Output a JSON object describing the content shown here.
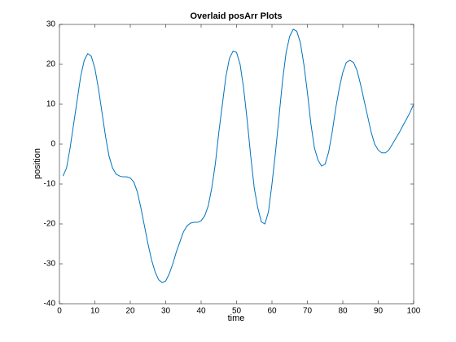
{
  "chart_data": {
    "type": "line",
    "title": "Overlaid posArr Plots",
    "x_label": "time",
    "y_label": "position",
    "x": [
      1,
      2,
      3,
      4,
      5,
      6,
      7,
      8,
      9,
      10,
      11,
      12,
      13,
      14,
      15,
      16,
      17,
      18,
      19,
      20,
      21,
      22,
      23,
      24,
      25,
      26,
      27,
      28,
      29,
      30,
      31,
      32,
      33,
      34,
      35,
      36,
      37,
      38,
      39,
      40,
      41,
      42,
      43,
      44,
      45,
      46,
      47,
      48,
      49,
      50,
      51,
      52,
      53,
      54,
      55,
      56,
      57,
      58,
      59,
      60,
      61,
      62,
      63,
      64,
      65,
      66,
      67,
      68,
      69,
      70,
      71,
      72,
      73,
      74,
      75,
      76,
      77,
      78,
      79,
      80,
      81,
      82,
      83,
      84,
      85,
      86,
      87,
      88,
      89,
      90,
      91,
      92,
      93,
      94,
      95,
      96,
      97,
      98,
      99,
      100
    ],
    "series": [
      {
        "color": "#0072bd",
        "values": [
          -8,
          -6,
          -1,
          5,
          11,
          17,
          21,
          22.7,
          22,
          19,
          14,
          8,
          2,
          -3,
          -6,
          -7.5,
          -8,
          -8.2,
          -8.2,
          -8.5,
          -9.5,
          -12,
          -16,
          -20.5,
          -25,
          -29,
          -32,
          -34,
          -34.7,
          -34.3,
          -32.5,
          -30,
          -27,
          -24.5,
          -22,
          -20.5,
          -19.8,
          -19.6,
          -19.6,
          -19.2,
          -18,
          -15.5,
          -11,
          -5,
          3,
          10,
          17,
          21.5,
          23.3,
          23,
          20,
          14,
          6,
          -3,
          -11,
          -16,
          -19.5,
          -20,
          -17,
          -10,
          -2,
          7,
          16,
          23,
          27,
          28.8,
          28.3,
          25.5,
          20,
          13,
          5,
          -1,
          -4,
          -5.5,
          -5,
          -2,
          3,
          9,
          14,
          18,
          20.5,
          21,
          20.5,
          18.5,
          15,
          11,
          7,
          3,
          0,
          -1.5,
          -2.2,
          -2.2,
          -1.5,
          0,
          1.5,
          3,
          4.7,
          6.3,
          8,
          10
        ]
      }
    ],
    "xlim": [
      0,
      100
    ],
    "xticks": [
      0,
      10,
      20,
      30,
      40,
      50,
      60,
      70,
      80,
      90,
      100
    ],
    "ylim": [
      -40,
      30
    ],
    "yticks": [
      -40,
      -30,
      -20,
      -10,
      0,
      10,
      20,
      30
    ]
  }
}
